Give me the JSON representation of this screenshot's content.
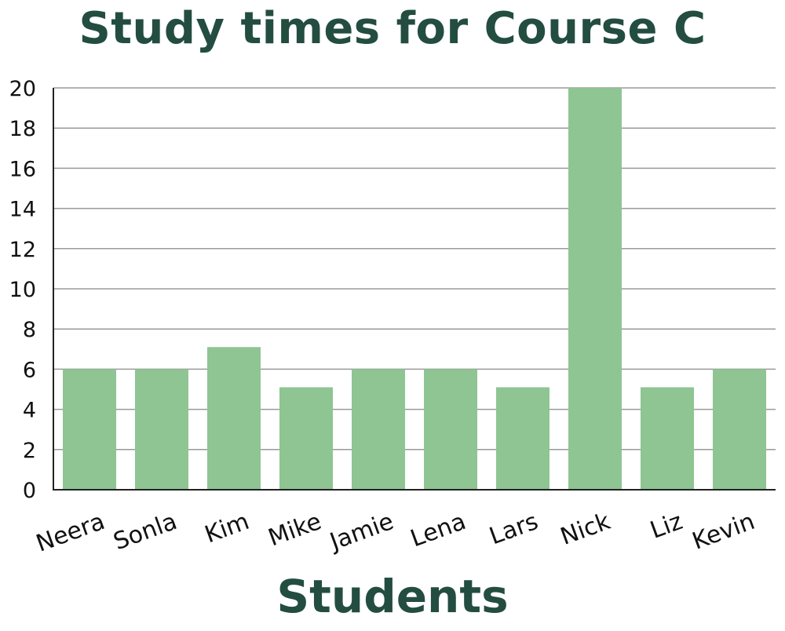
{
  "chart_data": {
    "type": "bar",
    "title": "Study times for Course C",
    "xlabel": "Students",
    "ylabel": "",
    "categories": [
      "Neera",
      "Sonla",
      "Kim",
      "Mike",
      "Jamie",
      "Lena",
      "Lars",
      "Nick",
      "Liz",
      "Kevin"
    ],
    "values": [
      6,
      6,
      7.1,
      5.1,
      6,
      6,
      5.1,
      20,
      5.1,
      6
    ],
    "ylim": [
      0,
      20
    ],
    "yticks": [
      0,
      2,
      4,
      6,
      8,
      10,
      12,
      14,
      16,
      18,
      20
    ],
    "grid": true,
    "bar_color": "#8fc493",
    "title_color": "#234d40"
  }
}
